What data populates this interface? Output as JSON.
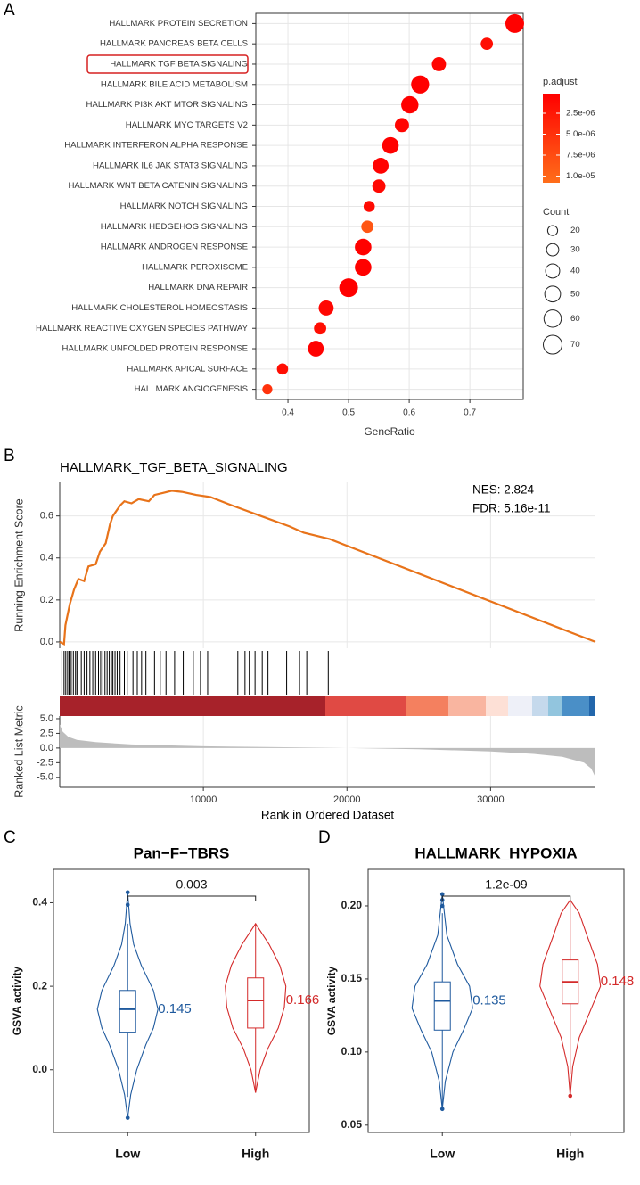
{
  "chart_data": [
    {
      "type": "dot",
      "panel": "A",
      "categories": [
        "HALLMARK PROTEIN SECRETION",
        "HALLMARK PANCREAS BETA CELLS",
        "HALLMARK TGF BETA SIGNALING",
        "HALLMARK BILE ACID METABOLISM",
        "HALLMARK PI3K AKT MTOR SIGNALING",
        "HALLMARK MYC TARGETS V2",
        "HALLMARK INTERFERON ALPHA RESPONSE",
        "HALLMARK IL6 JAK STAT3 SIGNALING",
        "HALLMARK WNT BETA CATENIN SIGNALING",
        "HALLMARK NOTCH SIGNALING",
        "HALLMARK HEDGEHOG SIGNALING",
        "HALLMARK ANDROGEN RESPONSE",
        "HALLMARK PEROXISOME",
        "HALLMARK DNA REPAIR",
        "HALLMARK CHOLESTEROL HOMEOSTASIS",
        "HALLMARK REACTIVE OXYGEN SPECIES PATHWAY",
        "HALLMARK UNFOLDED PROTEIN RESPONSE",
        "HALLMARK APICAL SURFACE",
        "HALLMARK ANGIOGENESIS"
      ],
      "values": [
        0.774,
        0.728,
        0.649,
        0.618,
        0.601,
        0.588,
        0.569,
        0.553,
        0.55,
        0.534,
        0.531,
        0.524,
        0.524,
        0.5,
        0.463,
        0.453,
        0.446,
        0.391,
        0.366
      ],
      "counts": [
        70,
        30,
        40,
        65,
        60,
        40,
        55,
        50,
        35,
        25,
        30,
        55,
        55,
        70,
        45,
        30,
        50,
        25,
        20
      ],
      "p_adjust": [
        3e-07,
        1.5e-06,
        6e-07,
        2e-07,
        2e-07,
        5e-07,
        3e-07,
        4e-07,
        9e-07,
        1.2e-06,
        8.5e-06,
        3e-07,
        3e-07,
        2e-07,
        8e-07,
        1.5e-06,
        4e-07,
        1.5e-06,
        5e-06
      ],
      "highlight": 2,
      "xlabel": "GeneRatio",
      "xlim": [
        0.347,
        0.788
      ],
      "xticks": [
        0.4,
        0.5,
        0.6,
        0.7
      ],
      "grid": true,
      "color_legend_title": "p.adjust",
      "clim": [
        1.6e-07,
        1.08e-05
      ],
      "colors": [
        "#ff0000",
        "#ff6e1a"
      ],
      "cticks": [
        {
          "value": 2.5e-06,
          "label": "2.5e-06"
        },
        {
          "value": 5e-06,
          "label": "5.0e-06"
        },
        {
          "value": 7.5e-06,
          "label": "7.5e-06"
        },
        {
          "value": 1e-05,
          "label": "1.0e-05"
        }
      ],
      "size_legend_title": "Count",
      "size_legend": [
        20,
        30,
        40,
        50,
        60,
        70
      ]
    },
    {
      "type": "gsea",
      "panel": "B",
      "title": "HALLMARK_TGF_BETA_SIGNALING",
      "nes": "NES: 2.824",
      "fdr": "FDR: 5.16e-11",
      "color": "#e8731a",
      "ylabel": "Running Enrichment Score",
      "ylabel2": "Ranked List Metric",
      "xlabel": "Rank in Ordered Dataset",
      "x": [
        0,
        300,
        400,
        700,
        1000,
        1300,
        1700,
        2000,
        2500,
        2800,
        3200,
        3500,
        3700,
        4200,
        4500,
        5000,
        5500,
        6200,
        6600,
        7200,
        7800,
        8500,
        9500,
        10500,
        12000,
        14000,
        16000,
        17000,
        18800,
        37300
      ],
      "values": [
        0,
        -0.01,
        0.08,
        0.18,
        0.25,
        0.3,
        0.29,
        0.36,
        0.37,
        0.43,
        0.47,
        0.56,
        0.6,
        0.65,
        0.67,
        0.66,
        0.68,
        0.67,
        0.7,
        0.71,
        0.72,
        0.715,
        0.7,
        0.69,
        0.65,
        0.6,
        0.55,
        0.52,
        0.49,
        0
      ],
      "hits": [
        150,
        300,
        420,
        550,
        650,
        800,
        950,
        1100,
        1200,
        1500,
        1700,
        1900,
        2100,
        2300,
        2500,
        2700,
        2850,
        3000,
        3150,
        3300,
        3450,
        3600,
        3700,
        3850,
        4000,
        4200,
        4500,
        4700,
        5100,
        5400,
        5700,
        6000,
        6600,
        7000,
        7400,
        8000,
        8600,
        9300,
        9800,
        10300,
        12400,
        12900,
        13200,
        13600,
        14100,
        14500,
        15800,
        16700,
        17200,
        18700
      ],
      "metric_x": [
        0,
        200,
        600,
        1200,
        2500,
        5000,
        10000,
        15000,
        20000,
        25000,
        30000,
        33000,
        35000,
        36500,
        37000,
        37300
      ],
      "metric_values": [
        4.0,
        2.8,
        1.9,
        1.4,
        1.0,
        0.6,
        0.3,
        0.15,
        0,
        -0.2,
        -0.6,
        -1.0,
        -1.5,
        -2.5,
        -3.5,
        -5.0
      ],
      "xlim": [
        0,
        37300
      ],
      "xticks": [
        10000,
        20000,
        30000
      ],
      "ylim": [
        -0.03,
        0.76
      ],
      "yticks": [
        {
          "value": 0,
          "label": "0.0"
        },
        0.2,
        0.4,
        0.6
      ],
      "metric_ylim": [
        -6.7,
        5.45
      ],
      "metric_yticks": [
        {
          "value": 5,
          "label": "5.0"
        },
        2.5,
        {
          "value": 0,
          "label": "0.0"
        },
        -2.5,
        {
          "value": -5,
          "label": "-5.0"
        }
      ],
      "grid": true
    },
    {
      "type": "violin",
      "panel": "C",
      "title": "Pan−F−TBRS",
      "ylabel": "GSVA activity",
      "p_label": "0.003",
      "ylim": [
        -0.15,
        0.48
      ],
      "yticks": [
        {
          "value": 0,
          "label": "0.0"
        },
        0.2,
        0.4
      ],
      "groups": [
        {
          "name": "Low",
          "color": "#1f5a9e",
          "min": -0.065,
          "q1": 0.09,
          "median": 0.145,
          "q3": 0.19,
          "max": 0.35,
          "outliers": [
            0.395,
            0.425,
            -0.115
          ],
          "violin_y": [
            -0.115,
            -0.06,
            0,
            0.06,
            0.1,
            0.145,
            0.19,
            0.25,
            0.3,
            0.35,
            0.425
          ],
          "violin_density": [
            0,
            0.1,
            0.3,
            0.6,
            0.85,
            1,
            0.85,
            0.45,
            0.2,
            0.08,
            0
          ]
        },
        {
          "name": "High",
          "color": "#d42a2a",
          "min": -0.05,
          "q1": 0.1,
          "median": 0.166,
          "q3": 0.22,
          "max": 0.35,
          "outliers": [],
          "violin_y": [
            -0.055,
            0,
            0.05,
            0.1,
            0.15,
            0.2,
            0.25,
            0.3,
            0.35
          ],
          "violin_density": [
            0,
            0.15,
            0.4,
            0.75,
            0.95,
            1,
            0.8,
            0.45,
            0
          ]
        }
      ]
    },
    {
      "type": "violin",
      "panel": "D",
      "title": "HALLMARK_HYPOXIA",
      "ylabel": "GSVA activity",
      "p_label": "1.2e-09",
      "ylim": [
        0.045,
        0.225
      ],
      "yticks": [
        0.05,
        {
          "value": 0.1,
          "label": "0.10"
        },
        0.15,
        {
          "value": 0.2,
          "label": "0.20"
        }
      ],
      "groups": [
        {
          "name": "Low",
          "color": "#1f5a9e",
          "min": 0.062,
          "q1": 0.115,
          "median": 0.135,
          "q3": 0.148,
          "max": 0.195,
          "outliers": [
            0.061,
            0.2,
            0.204,
            0.208
          ],
          "violin_y": [
            0.061,
            0.08,
            0.1,
            0.115,
            0.13,
            0.145,
            0.16,
            0.18,
            0.208
          ],
          "violin_density": [
            0,
            0.1,
            0.35,
            0.7,
            1,
            0.9,
            0.5,
            0.15,
            0
          ]
        },
        {
          "name": "High",
          "color": "#d42a2a",
          "min": 0.085,
          "q1": 0.133,
          "median": 0.148,
          "q3": 0.163,
          "max": 0.204,
          "outliers": [
            0.07
          ],
          "violin_y": [
            0.07,
            0.09,
            0.11,
            0.13,
            0.145,
            0.16,
            0.18,
            0.195,
            0.204
          ],
          "violin_density": [
            0,
            0.08,
            0.3,
            0.7,
            1,
            0.9,
            0.55,
            0.3,
            0
          ]
        }
      ]
    }
  ]
}
